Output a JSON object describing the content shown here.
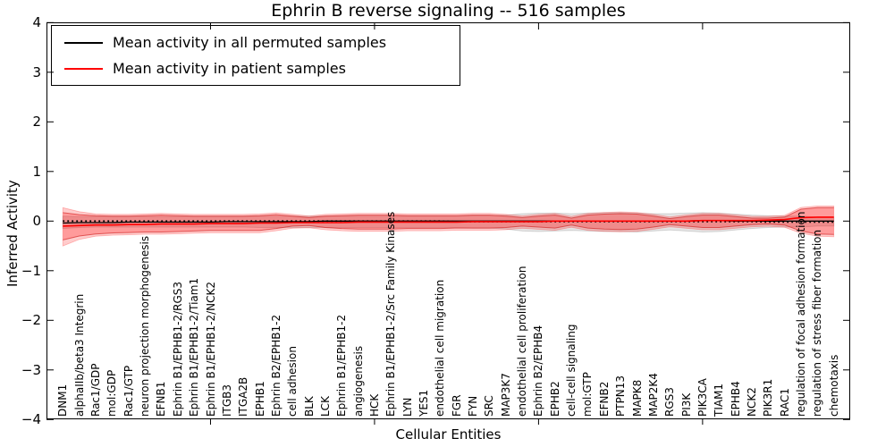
{
  "chart_data": {
    "type": "line",
    "title": "Ephrin B reverse signaling -- 516 samples",
    "xlabel": "Cellular Entities",
    "ylabel": "Inferred Activity",
    "ylim": [
      -4,
      4
    ],
    "yticks": [
      -4,
      -3,
      -2,
      -1,
      0,
      1,
      2,
      3,
      4
    ],
    "xtick_marks_at_category_number": [
      10,
      20,
      30,
      40
    ],
    "grid": false,
    "legend": {
      "position": "upper left",
      "entries": [
        {
          "label": "Mean activity in all permuted samples",
          "color": "#000000",
          "style": "solid"
        },
        {
          "label": "Mean activity in patient samples",
          "color": "#ff0000",
          "style": "solid"
        }
      ]
    },
    "colors": {
      "patient_line": "#ff0000",
      "permuted_line": "#000000",
      "patient_band_fill": "rgba(255,0,0,0.22)",
      "permuted_band_fill": "rgba(0,0,0,0.10)"
    },
    "categories": [
      "DNM1",
      "alphaIIb/beta3 Integrin",
      "Rac1/GDP",
      "mol:GDP",
      "Rac1/GTP",
      "neuron projection morphogenesis",
      "EFNB1",
      "Ephrin B1/EPHB1-2/RGS3",
      "Ephrin B1/EPHB1-2/Tiam1",
      "Ephrin B1/EPHB1-2/NCK2",
      "ITGB3",
      "ITGA2B",
      "EPHB1",
      "Ephrin B2/EPHB1-2",
      "cell adhesion",
      "BLK",
      "LCK",
      "Ephrin B1/EPHB1-2",
      "angiogenesis",
      "HCK",
      "Ephrin B1/EPHB1-2/Src Family Kinases",
      "LYN",
      "YES1",
      "endothelial cell migration",
      "FGR",
      "FYN",
      "SRC",
      "MAP3K7",
      "endothelial cell proliferation",
      "Ephrin B2/EPHB4",
      "EPHB2",
      "cell-cell signaling",
      "mol:GTP",
      "EFNB2",
      "PTPN13",
      "MAPK8",
      "MAP2K4",
      "RGS3",
      "PI3K",
      "PIK3CA",
      "TIAM1",
      "EPHB4",
      "NCK2",
      "PIK3R1",
      "RAC1",
      "regulation of focal adhesion formation",
      "regulation of stress fiber formation",
      "chemotaxis"
    ],
    "series": [
      {
        "name": "Mean activity in all permuted samples",
        "color": "#000000",
        "style": "solid",
        "values": [
          -0.04,
          -0.03,
          -0.03,
          -0.03,
          -0.02,
          -0.02,
          -0.02,
          -0.02,
          -0.02,
          -0.02,
          -0.01,
          -0.01,
          -0.01,
          -0.01,
          -0.01,
          -0.01,
          0,
          0,
          0,
          0,
          0,
          0,
          0,
          0,
          0,
          0,
          0,
          0,
          0,
          0,
          0,
          0,
          0,
          0,
          0,
          0,
          0,
          0,
          0,
          0.01,
          0.01,
          0,
          0,
          0,
          0,
          0,
          0,
          0
        ]
      },
      {
        "name": "Mean activity in patient samples",
        "color": "#ff0000",
        "style": "solid",
        "values": [
          -0.1,
          -0.09,
          -0.08,
          -0.08,
          -0.07,
          -0.07,
          -0.06,
          -0.06,
          -0.06,
          -0.05,
          -0.05,
          -0.05,
          -0.04,
          -0.04,
          -0.03,
          -0.03,
          -0.03,
          -0.03,
          -0.02,
          -0.02,
          -0.02,
          -0.02,
          -0.02,
          -0.02,
          -0.02,
          -0.01,
          -0.01,
          -0.01,
          -0.01,
          -0.01,
          0,
          0,
          0,
          0,
          0,
          0,
          0,
          0,
          0,
          0.01,
          0.01,
          0.01,
          0.01,
          0.02,
          0.03,
          0.07,
          0.08,
          0.08
        ]
      },
      {
        "name": "zero reference (dotted)",
        "color": "#000000",
        "style": "dotted",
        "values": [
          0,
          0,
          0,
          0,
          0,
          0,
          0,
          0,
          0,
          0,
          0,
          0,
          0,
          0,
          0,
          0,
          0,
          0,
          0,
          0,
          0,
          0,
          0,
          0,
          -0.01,
          -0.01,
          -0.01,
          -0.01,
          -0.01,
          -0.01,
          -0.01,
          -0.01,
          -0.01,
          -0.01,
          -0.01,
          -0.01,
          -0.01,
          -0.01,
          -0.01,
          -0.01,
          -0.01,
          -0.01,
          -0.01,
          -0.02,
          -0.02,
          -0.02,
          -0.02,
          -0.02
        ]
      }
    ],
    "bands": [
      {
        "name": "patient samples mean ± std",
        "color": "#ff0000",
        "upper": [
          0.17,
          0.13,
          0.11,
          0.1,
          0.1,
          0.11,
          0.12,
          0.11,
          0.1,
          0.1,
          0.1,
          0.1,
          0.11,
          0.13,
          0.1,
          0.07,
          0.1,
          0.11,
          0.12,
          0.12,
          0.12,
          0.11,
          0.11,
          0.11,
          0.11,
          0.12,
          0.12,
          0.1,
          0.07,
          0.1,
          0.12,
          0.06,
          0.12,
          0.14,
          0.15,
          0.14,
          0.1,
          0.05,
          0.09,
          0.12,
          0.12,
          0.09,
          0.06,
          0.06,
          0.08,
          0.24,
          0.27,
          0.27
        ],
        "lower": [
          -0.38,
          -0.3,
          -0.26,
          -0.24,
          -0.23,
          -0.22,
          -0.22,
          -0.21,
          -0.2,
          -0.19,
          -0.19,
          -0.19,
          -0.19,
          -0.15,
          -0.1,
          -0.09,
          -0.13,
          -0.15,
          -0.16,
          -0.16,
          -0.16,
          -0.15,
          -0.15,
          -0.15,
          -0.14,
          -0.14,
          -0.14,
          -0.13,
          -0.1,
          -0.12,
          -0.14,
          -0.08,
          -0.14,
          -0.16,
          -0.17,
          -0.16,
          -0.12,
          -0.07,
          -0.1,
          -0.13,
          -0.13,
          -0.1,
          -0.07,
          -0.06,
          -0.08,
          -0.2,
          -0.26,
          -0.27
        ]
      },
      {
        "name": "permuted samples mean ± std",
        "color": "#bbbbbb",
        "upper": [
          0.1,
          0.09,
          0.09,
          0.09,
          0.09,
          0.09,
          0.09,
          0.09,
          0.09,
          0.09,
          0.09,
          0.09,
          0.1,
          0.1,
          0.1,
          0.1,
          0.1,
          0.1,
          0.1,
          0.1,
          0.1,
          0.1,
          0.1,
          0.1,
          0.1,
          0.11,
          0.11,
          0.12,
          0.15,
          0.16,
          0.16,
          0.15,
          0.16,
          0.17,
          0.17,
          0.16,
          0.15,
          0.15,
          0.16,
          0.17,
          0.16,
          0.14,
          0.12,
          0.11,
          0.1,
          0.1,
          0.08,
          0.08
        ],
        "lower": [
          -0.15,
          -0.13,
          -0.12,
          -0.12,
          -0.12,
          -0.12,
          -0.12,
          -0.12,
          -0.12,
          -0.12,
          -0.12,
          -0.12,
          -0.13,
          -0.13,
          -0.13,
          -0.13,
          -0.13,
          -0.13,
          -0.13,
          -0.13,
          -0.13,
          -0.13,
          -0.13,
          -0.13,
          -0.13,
          -0.14,
          -0.14,
          -0.16,
          -0.2,
          -0.21,
          -0.2,
          -0.19,
          -0.2,
          -0.21,
          -0.21,
          -0.22,
          -0.2,
          -0.18,
          -0.2,
          -0.22,
          -0.21,
          -0.18,
          -0.15,
          -0.13,
          -0.12,
          -0.12,
          -0.1,
          -0.1
        ]
      }
    ]
  }
}
